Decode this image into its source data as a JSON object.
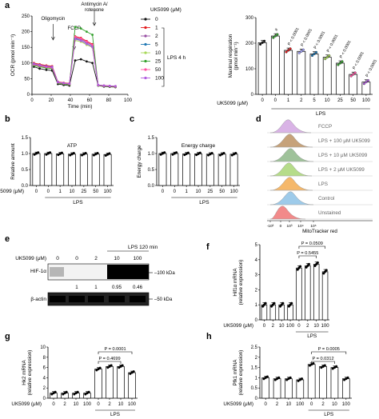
{
  "panel_letters": {
    "a": "a",
    "b": "b",
    "c": "c",
    "d": "d",
    "e": "e",
    "f": "f",
    "g": "g",
    "h": "h"
  },
  "common": {
    "lps": "LPS",
    "uk_axis": "UK5099 (μM)"
  },
  "chart_data": [
    {
      "id": "a_left",
      "type": "line",
      "xlabel": "Time (min)",
      "ylabel": "OCR (pmol min⁻¹)",
      "xlim": [
        0,
        100
      ],
      "ylim": [
        0,
        250
      ],
      "xticks": [
        0,
        20,
        40,
        60,
        80,
        100
      ],
      "yticks": [
        0,
        50,
        100,
        150,
        200,
        250
      ],
      "annotations": [
        "Oligomycin",
        "FCCP",
        "Antimycin A/\nrotenone"
      ],
      "injection_x": [
        22,
        44,
        65
      ],
      "x": [
        2,
        8,
        15,
        21,
        27,
        33,
        39,
        45,
        51,
        57,
        63,
        69,
        75,
        81,
        87
      ],
      "series": [
        {
          "name": "0",
          "color": "#111111",
          "values": [
            88,
            82,
            78,
            76,
            33,
            30,
            28,
            108,
            112,
            105,
            100,
            28,
            25,
            24,
            23
          ]
        },
        {
          "name": "1",
          "color": "#e41a1c",
          "values": [
            100,
            96,
            92,
            90,
            40,
            37,
            35,
            185,
            180,
            170,
            160,
            30,
            28,
            27,
            26
          ]
        },
        {
          "name": "2",
          "color": "#984ea3",
          "values": [
            98,
            94,
            90,
            88,
            39,
            36,
            34,
            180,
            176,
            166,
            156,
            30,
            28,
            27,
            26
          ]
        },
        {
          "name": "5",
          "color": "#1f78b4",
          "values": [
            96,
            92,
            88,
            86,
            38,
            35,
            33,
            178,
            172,
            162,
            152,
            29,
            27,
            26,
            25
          ]
        },
        {
          "name": "10",
          "color": "#a6d854",
          "values": [
            94,
            90,
            86,
            84,
            37,
            34,
            32,
            172,
            168,
            158,
            150,
            29,
            27,
            26,
            25
          ]
        },
        {
          "name": "25",
          "color": "#33a02c",
          "values": [
            92,
            88,
            84,
            82,
            36,
            33,
            31,
            215,
            210,
            200,
            190,
            28,
            26,
            25,
            24
          ]
        },
        {
          "name": "50",
          "color": "#ff4fa1",
          "values": [
            95,
            91,
            87,
            85,
            38,
            35,
            33,
            183,
            178,
            168,
            158,
            29,
            27,
            26,
            25
          ]
        },
        {
          "name": "100",
          "color": "#b15be0",
          "values": [
            97,
            93,
            89,
            87,
            39,
            36,
            34,
            176,
            171,
            161,
            151,
            30,
            28,
            27,
            26
          ]
        }
      ],
      "legend_title": "UK5099 (μM)",
      "legend_group_label": "LPS 4 h"
    },
    {
      "id": "a_right",
      "type": "bar",
      "ylabel": "Maximal respiration\n(pmol min⁻¹)",
      "ylim": [
        0,
        300
      ],
      "yticks": [
        0,
        100,
        200,
        300
      ],
      "categories": [
        "0",
        "0",
        "1",
        "2",
        "5",
        "10",
        "25",
        "50",
        "100"
      ],
      "values": [
        202,
        228,
        172,
        168,
        158,
        145,
        122,
        78,
        48
      ],
      "colors": [
        "#111111",
        "#33a02c",
        "#e41a1c",
        "#a0a0ff",
        "#1f78b4",
        "#a6d854",
        "#33a02c",
        "#ff4fa1",
        "#b15be0"
      ],
      "pvalues": [
        "#",
        "P < 0.0001",
        "P < 0.0001",
        "P < 0.0001",
        "P < 0.0001",
        "P < 0.0001",
        "P < 0.0001",
        "P < 0.0001"
      ],
      "xlabel": "UK5099 (μM)",
      "group_label": "LPS"
    },
    {
      "id": "b",
      "type": "bar",
      "title": "ATP",
      "ylabel": "Relative amount",
      "ylim": [
        0,
        1.5
      ],
      "yticks": [
        0,
        0.5,
        1.0,
        1.5
      ],
      "categories": [
        "0",
        "0",
        "1",
        "10",
        "25",
        "50",
        "100"
      ],
      "values": [
        1.0,
        1.0,
        0.99,
        0.98,
        0.98,
        0.98,
        0.97
      ],
      "xlabel": "UK5099 (μM)",
      "group_label": "LPS"
    },
    {
      "id": "c",
      "type": "bar",
      "title": "Energy charge",
      "ylabel": "Energy charge",
      "ylim": [
        0,
        1.5
      ],
      "yticks": [
        0,
        0.5,
        1.0,
        1.5
      ],
      "categories": [
        "0",
        "0",
        "1",
        "10",
        "25",
        "50",
        "100"
      ],
      "values": [
        1.0,
        1.0,
        0.99,
        0.99,
        0.98,
        0.98,
        0.98
      ]
    },
    {
      "id": "d",
      "type": "area",
      "xlabel": "MitoTracker red",
      "xticks": [
        "-10³",
        "0",
        "10³",
        "10⁴",
        "10⁵"
      ],
      "series": [
        {
          "name": "FCCP",
          "color": "#d9b3e6"
        },
        {
          "name": "LPS + 100 μM UK5099",
          "color": "#c6a27a"
        },
        {
          "name": "LPS + 10 μM UK5099",
          "color": "#9fc29a"
        },
        {
          "name": "LPS + 2 μM UK5099",
          "color": "#b6dc8a"
        },
        {
          "name": "LPS",
          "color": "#f5b86b"
        },
        {
          "name": "Control",
          "color": "#9ecbea"
        },
        {
          "name": "Unstained",
          "color": "#f28a8a"
        }
      ]
    },
    {
      "id": "f",
      "type": "bar",
      "ylabel": "Hif1α mRNA\n(relative expression)",
      "ylim": [
        0,
        5
      ],
      "yticks": [
        0,
        1,
        2,
        3,
        4,
        5
      ],
      "categories": [
        "0",
        "2",
        "10",
        "100",
        "0",
        "2",
        "10",
        "100"
      ],
      "values": [
        1.0,
        1.0,
        1.0,
        1.0,
        3.45,
        3.6,
        3.7,
        3.2
      ],
      "pvalues": [
        "P = 0.0509",
        "P = 0.5455"
      ],
      "xlabel": "UK5099 (μM)",
      "group_label": "LPS"
    },
    {
      "id": "g",
      "type": "bar",
      "ylabel": "Hk2 mRNA\n(relative expression)",
      "ylim": [
        0,
        10
      ],
      "yticks": [
        0,
        2,
        4,
        6,
        8,
        10
      ],
      "categories": [
        "0",
        "2",
        "10",
        "100",
        "0",
        "2",
        "10",
        "100"
      ],
      "values": [
        1.0,
        1.0,
        1.0,
        1.0,
        5.7,
        6.2,
        6.2,
        5.0
      ],
      "pvalues": [
        "P = 0.0001",
        "P = 0.4699"
      ],
      "xlabel": "UK5099 (μM)",
      "group_label": "LPS"
    },
    {
      "id": "h",
      "type": "bar",
      "ylabel": "Pfk1 mRNA\n(relative expression)",
      "ylim": [
        0,
        2.5
      ],
      "yticks": [
        0,
        0.5,
        1.0,
        1.5,
        2.0,
        2.5
      ],
      "categories": [
        "0",
        "2",
        "10",
        "100",
        "0",
        "2",
        "10",
        "100"
      ],
      "values": [
        1.0,
        0.95,
        0.95,
        0.9,
        1.65,
        1.55,
        1.5,
        0.95
      ],
      "pvalues": [
        "P = 0.0005",
        "P = 0.0312"
      ],
      "xlabel": "UK5099 (μM)",
      "group_label": "LPS"
    }
  ],
  "blot_e": {
    "title": "LPS 120 min",
    "uk_label": "UK5099 (μM)",
    "uk_values": [
      "0",
      "0",
      "2",
      "10",
      "100"
    ],
    "row1": "HIF-1α",
    "row2": "β-actin",
    "mw1": "100 kDa",
    "mw2": "50 kDa",
    "quant": [
      "1",
      "1",
      "0.95",
      "0.46"
    ]
  }
}
